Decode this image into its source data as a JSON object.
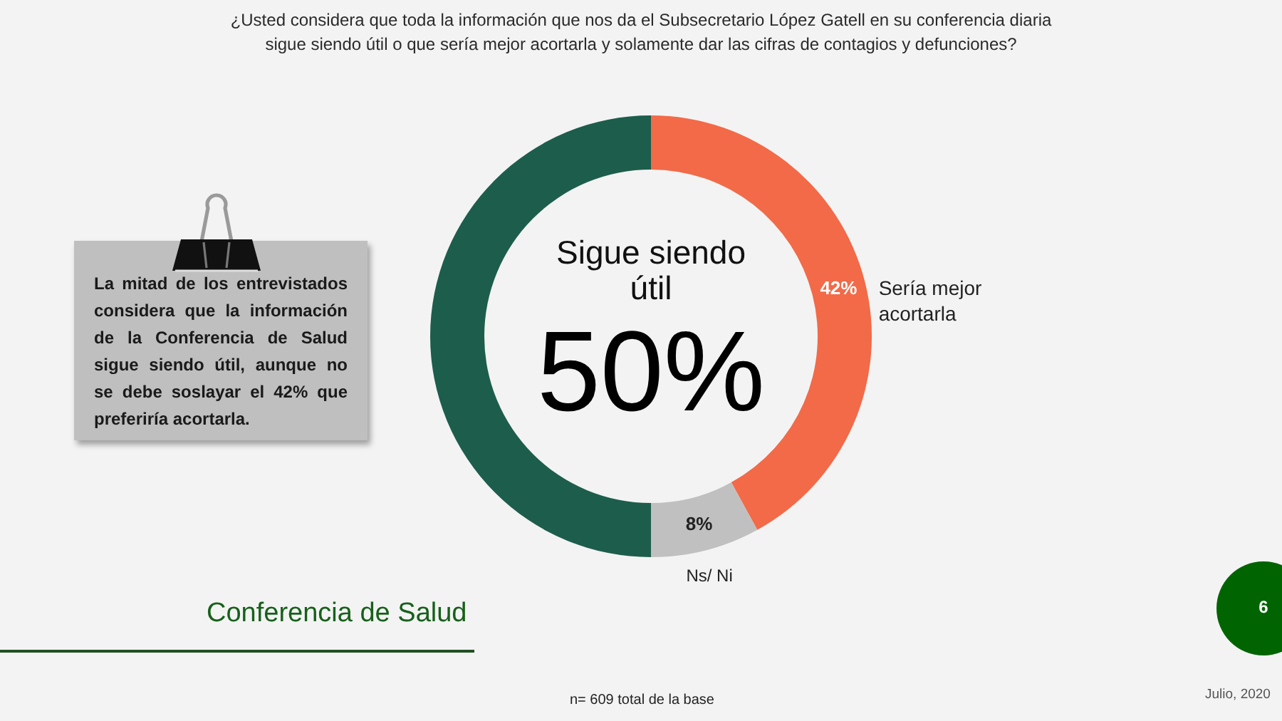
{
  "chart_data": {
    "type": "donut",
    "title": "¿Usted considera que toda la información que nos da el Subsecretario López Gatell en su conferencia diaria sigue siendo útil o que sería mejor acortarla y solamente dar las cifras de contagios y defunciones?",
    "categories": [
      "Sería mejor acortarla",
      "Ns/ Ni",
      "Sigue siendo útil"
    ],
    "values": [
      42,
      8,
      50
    ],
    "colors": [
      "#f26a48",
      "#c0c0c0",
      "#1d5d4c"
    ],
    "value_labels": [
      "42%",
      "8%",
      "50%"
    ],
    "annotations": [
      "La mitad de los entrevistados considera que la información de la Conferencia de Salud sigue siendo útil, aunque no se debe soslayar el 42% que preferiría acortarla.",
      "Conferencia de Salud",
      "6",
      "n= 609 total de la base",
      "Julio, 2020"
    ]
  }
}
